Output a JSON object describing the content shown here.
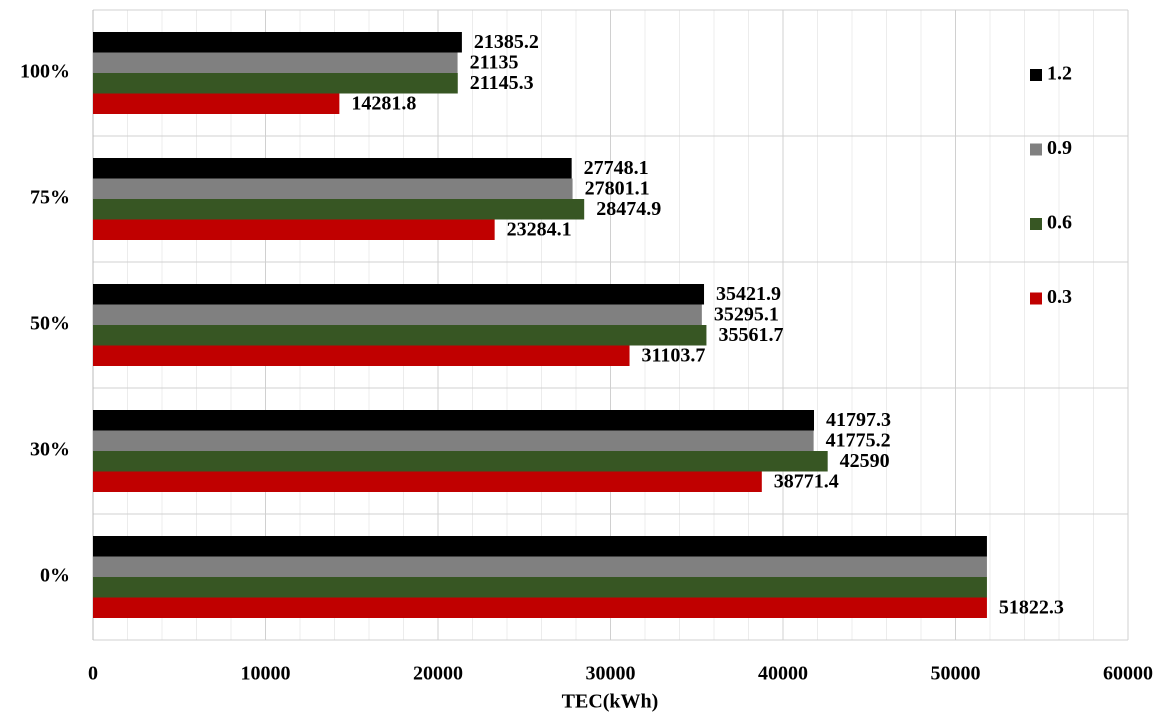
{
  "chart_data": {
    "type": "hbar",
    "x_label": "TEC(kWh)",
    "categories": [
      "100%",
      "75%",
      "50%",
      "30%",
      "0%"
    ],
    "series": [
      {
        "name": "1.2",
        "color": "#000000",
        "values": [
          21385.2,
          27748.1,
          35421.9,
          41797.3,
          51822.3
        ],
        "value_labels": [
          "21385.2",
          "27748.1",
          "35421.9",
          "41797.3",
          null
        ]
      },
      {
        "name": "0.9",
        "color": "#808080",
        "values": [
          21135,
          27801.1,
          35295.1,
          41775.2,
          51822.3
        ],
        "value_labels": [
          "21135",
          "27801.1",
          "35295.1",
          "41775.2",
          null
        ]
      },
      {
        "name": "0.6",
        "color": "#375623",
        "values": [
          21145.3,
          28474.9,
          35561.7,
          42590,
          51822.3
        ],
        "value_labels": [
          "21145.3",
          "28474.9",
          "35561.7",
          "42590",
          null
        ]
      },
      {
        "name": "0.3",
        "color": "#c00000",
        "values": [
          14281.8,
          23284.1,
          31103.7,
          38771.4,
          51822.3
        ],
        "value_labels": [
          "14281.8",
          "23284.1",
          "31103.7",
          "38771.4",
          "51822.3"
        ]
      }
    ],
    "xlim": [
      0,
      60000
    ],
    "xticks": [
      0,
      10000,
      20000,
      30000,
      40000,
      50000,
      60000
    ],
    "grid": true,
    "legend": "right"
  }
}
